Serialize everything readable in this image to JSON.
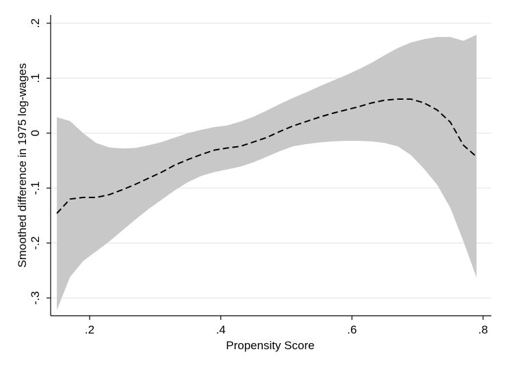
{
  "chart_data": {
    "type": "line",
    "title": "",
    "xlabel": "Propensity Score",
    "ylabel": "Smoothed difference in 1975 log-wages",
    "xlim": [
      0.15,
      0.8
    ],
    "ylim": [
      -0.33,
      0.2
    ],
    "x_ticks": [
      0.2,
      0.4,
      0.6,
      0.8
    ],
    "x_tick_labels": [
      ".2",
      ".4",
      ".6",
      ".8"
    ],
    "y_ticks": [
      -0.3,
      -0.2,
      -0.1,
      0,
      0.1,
      0.2
    ],
    "y_tick_labels": [
      "-.3",
      "-.2",
      "-.1",
      "0",
      ".1",
      ".2"
    ],
    "grid": true,
    "legend": "none",
    "colors": {
      "band": "#c8c8c8",
      "line": "#000000",
      "grid": "#e6e6e6",
      "axis": "#000000"
    },
    "series": [
      {
        "style": "dashed",
        "x": [
          0.15,
          0.17,
          0.19,
          0.21,
          0.23,
          0.25,
          0.27,
          0.29,
          0.31,
          0.33,
          0.35,
          0.37,
          0.39,
          0.41,
          0.43,
          0.45,
          0.47,
          0.49,
          0.51,
          0.53,
          0.55,
          0.57,
          0.59,
          0.61,
          0.63,
          0.65,
          0.67,
          0.69,
          0.71,
          0.73,
          0.75,
          0.77,
          0.79
        ],
        "y": [
          -0.146,
          -0.12,
          -0.117,
          -0.117,
          -0.112,
          -0.103,
          -0.093,
          -0.082,
          -0.071,
          -0.058,
          -0.048,
          -0.039,
          -0.031,
          -0.027,
          -0.024,
          -0.016,
          -0.008,
          0.003,
          0.013,
          0.021,
          0.029,
          0.036,
          0.042,
          0.048,
          0.055,
          0.06,
          0.062,
          0.062,
          0.055,
          0.042,
          0.02,
          -0.022,
          -0.043
        ]
      }
    ],
    "band": {
      "x": [
        0.15,
        0.17,
        0.19,
        0.21,
        0.23,
        0.25,
        0.27,
        0.29,
        0.31,
        0.33,
        0.35,
        0.37,
        0.39,
        0.41,
        0.43,
        0.45,
        0.47,
        0.49,
        0.51,
        0.53,
        0.55,
        0.57,
        0.59,
        0.61,
        0.63,
        0.65,
        0.67,
        0.69,
        0.71,
        0.73,
        0.75,
        0.77,
        0.79
      ],
      "upper": [
        0.029,
        0.022,
        0.0,
        -0.018,
        -0.026,
        -0.028,
        -0.027,
        -0.022,
        -0.016,
        -0.008,
        0.0,
        0.006,
        0.011,
        0.014,
        0.021,
        0.03,
        0.041,
        0.053,
        0.064,
        0.074,
        0.085,
        0.095,
        0.105,
        0.116,
        0.128,
        0.142,
        0.155,
        0.165,
        0.171,
        0.175,
        0.175,
        0.168,
        0.179
      ],
      "lower": [
        -0.322,
        -0.262,
        -0.233,
        -0.215,
        -0.197,
        -0.177,
        -0.157,
        -0.138,
        -0.121,
        -0.104,
        -0.089,
        -0.078,
        -0.071,
        -0.066,
        -0.061,
        -0.053,
        -0.043,
        -0.033,
        -0.024,
        -0.02,
        -0.017,
        -0.015,
        -0.014,
        -0.014,
        -0.015,
        -0.018,
        -0.024,
        -0.04,
        -0.065,
        -0.094,
        -0.136,
        -0.197,
        -0.263
      ]
    }
  }
}
